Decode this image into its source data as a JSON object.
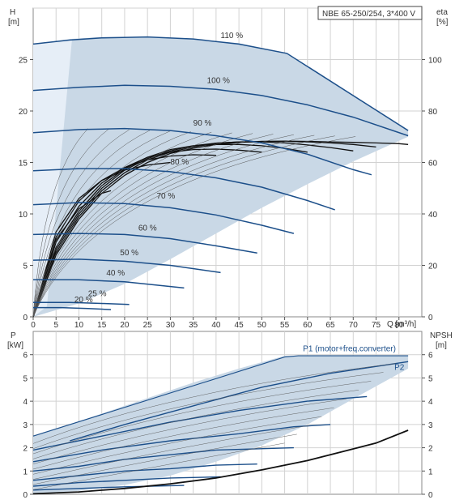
{
  "chart_data": [
    {
      "type": "line",
      "title": "NBE 65-250/254, 3*400 V",
      "xlabel": "Q [m³/h]",
      "ylabel_left": "H\n[m]",
      "ylabel_right": "eta\n[%]",
      "xlim": [
        0,
        85
      ],
      "ylim_left": [
        0,
        30
      ],
      "ylim_right": [
        0,
        120
      ],
      "xticks": [
        0,
        5,
        10,
        15,
        20,
        25,
        30,
        35,
        40,
        45,
        50,
        55,
        60,
        65,
        70,
        75,
        80
      ],
      "yticks_left": [
        0,
        5,
        10,
        15,
        20,
        25
      ],
      "yticks_right": [
        0,
        20,
        40,
        60,
        80,
        100
      ],
      "grid": true,
      "colors": {
        "envelope": "#c9d8e6",
        "envelope_edge": "#1c4f8a",
        "curve": "#1c4f8a",
        "eta": "#111111",
        "grid": "#d2d2d2"
      },
      "envelope": [
        [
          0,
          0
        ],
        [
          0,
          26.5
        ],
        [
          8,
          27
        ],
        [
          15,
          27.2
        ],
        [
          25,
          27.2
        ],
        [
          35,
          27.0
        ],
        [
          45,
          26.6
        ],
        [
          55.5,
          25.6
        ],
        [
          82,
          18.2
        ],
        [
          82,
          17.5
        ],
        [
          70,
          15.1
        ],
        [
          60,
          12.9
        ],
        [
          50,
          10.6
        ],
        [
          40,
          8.1
        ],
        [
          30,
          5.6
        ],
        [
          20,
          3.2
        ],
        [
          10,
          1.3
        ],
        [
          0,
          0
        ]
      ],
      "series": [
        {
          "name": "110 %",
          "label_at": [
            41,
            27.1
          ],
          "x": [
            0,
            8,
            15,
            25,
            35,
            45,
            55.5,
            82
          ],
          "y": [
            26.5,
            26.9,
            27.1,
            27.2,
            27.0,
            26.5,
            25.6,
            18.1
          ]
        },
        {
          "name": "100 %",
          "label_at": [
            38,
            22.7
          ],
          "x": [
            0,
            10,
            20,
            30,
            40,
            50,
            60,
            70,
            82
          ],
          "y": [
            22.0,
            22.3,
            22.5,
            22.4,
            22.1,
            21.5,
            20.6,
            19.4,
            17.6
          ]
        },
        {
          "name": "90 %",
          "label_at": [
            35,
            18.6
          ],
          "x": [
            0,
            10,
            20,
            30,
            40,
            50,
            60,
            70,
            74
          ],
          "y": [
            17.9,
            18.2,
            18.3,
            18.1,
            17.6,
            16.9,
            15.8,
            14.3,
            13.8
          ]
        },
        {
          "name": "80 %",
          "label_at": [
            30,
            14.8
          ],
          "x": [
            0,
            10,
            20,
            30,
            40,
            50,
            60,
            66
          ],
          "y": [
            14.2,
            14.4,
            14.4,
            14.1,
            13.5,
            12.6,
            11.3,
            10.4
          ]
        },
        {
          "name": "70 %",
          "label_at": [
            27,
            11.5
          ],
          "x": [
            0,
            10,
            20,
            30,
            40,
            50,
            57
          ],
          "y": [
            10.9,
            11.1,
            11.0,
            10.6,
            9.9,
            8.9,
            8.1
          ]
        },
        {
          "name": "60 %",
          "label_at": [
            23,
            8.4
          ],
          "x": [
            0,
            10,
            20,
            30,
            40,
            49
          ],
          "y": [
            8.0,
            8.1,
            8.0,
            7.6,
            6.9,
            6.2
          ]
        },
        {
          "name": "50 %",
          "label_at": [
            19,
            6.0
          ],
          "x": [
            0,
            10,
            20,
            30,
            41
          ],
          "y": [
            5.5,
            5.6,
            5.4,
            5.0,
            4.3
          ]
        },
        {
          "name": "40 %",
          "label_at": [
            16,
            4.0
          ],
          "x": [
            0,
            10,
            20,
            33
          ],
          "y": [
            3.6,
            3.6,
            3.4,
            2.8
          ]
        },
        {
          "name": "25 %",
          "label_at": [
            12,
            2.0
          ],
          "x": [
            0,
            8,
            15,
            21
          ],
          "y": [
            1.4,
            1.4,
            1.3,
            1.2
          ]
        },
        {
          "name": "20 %",
          "label_at": [
            9,
            1.4
          ],
          "x": [
            0,
            6,
            12,
            17
          ],
          "y": [
            0.9,
            0.9,
            0.8,
            0.7
          ]
        }
      ],
      "eta": [
        {
          "x": [
            0,
            5,
            10,
            15,
            20,
            25,
            30,
            35,
            40,
            45,
            50,
            55,
            60,
            65,
            70,
            75,
            80,
            82
          ],
          "y": [
            0,
            24,
            38,
            48,
            55,
            60,
            63.5,
            65.5,
            67,
            67.8,
            68.2,
            68.3,
            68.2,
            68,
            67.8,
            67.6,
            67.3,
            67
          ]
        },
        {
          "x": [
            0,
            5,
            10,
            15,
            20,
            25,
            30,
            35,
            40,
            45,
            50,
            55,
            60,
            65,
            70,
            75
          ],
          "y": [
            0,
            25,
            39,
            49,
            56,
            61,
            64,
            66,
            67.5,
            68,
            68.2,
            68.2,
            68,
            67.6,
            67,
            66
          ]
        },
        {
          "x": [
            0,
            5,
            10,
            15,
            20,
            25,
            30,
            35,
            40,
            45,
            50,
            55,
            60,
            65,
            70
          ],
          "y": [
            0,
            26,
            40,
            50,
            57,
            61.5,
            64.5,
            66.5,
            67.5,
            68,
            68,
            67.6,
            66.8,
            65.8,
            64.5
          ]
        },
        {
          "x": [
            0,
            5,
            10,
            15,
            20,
            25,
            30,
            35,
            40,
            45,
            50,
            55,
            60
          ],
          "y": [
            0,
            27,
            41,
            51,
            57.5,
            62,
            65,
            66.5,
            67,
            67,
            66.5,
            65.5,
            64
          ]
        },
        {
          "x": [
            0,
            5,
            10,
            15,
            20,
            25,
            30,
            35,
            40,
            45,
            50
          ],
          "y": [
            0,
            29,
            43,
            52,
            58,
            62,
            64,
            65,
            65.2,
            64.8,
            64
          ]
        },
        {
          "x": [
            0,
            5,
            10,
            15,
            20,
            25,
            30,
            35,
            40
          ],
          "y": [
            0,
            31,
            45,
            53,
            58,
            61,
            62.5,
            63,
            62.8
          ]
        },
        {
          "x": [
            0,
            5,
            10,
            15,
            20,
            25,
            30
          ],
          "y": [
            0,
            33,
            46,
            53,
            57,
            59,
            60
          ]
        },
        {
          "x": [
            0,
            5,
            10,
            15,
            17
          ],
          "y": [
            0,
            30,
            42,
            48,
            49
          ]
        }
      ],
      "labels": {
        "x": "Q [m³/h]"
      }
    },
    {
      "type": "line",
      "xlabel": "",
      "ylabel_left": "P\n[kW]",
      "ylabel_right": "NPSH\n[m]",
      "ylim_left": [
        0,
        7
      ],
      "ylim_right": [
        0,
        7
      ],
      "yticks_left": [
        0,
        1,
        2,
        3,
        4,
        5,
        6
      ],
      "yticks_right": [
        0,
        1,
        2,
        3,
        4,
        5,
        6
      ],
      "envelope": [
        [
          0,
          0
        ],
        [
          0,
          2.5
        ],
        [
          8,
          3.0
        ],
        [
          20,
          3.8
        ],
        [
          35,
          4.8
        ],
        [
          45,
          5.4
        ],
        [
          55,
          5.95
        ],
        [
          82,
          5.95
        ],
        [
          82,
          5.4
        ],
        [
          70,
          4.1
        ],
        [
          60,
          3.0
        ],
        [
          50,
          2.1
        ],
        [
          40,
          1.4
        ],
        [
          30,
          0.8
        ],
        [
          20,
          0.4
        ],
        [
          10,
          0.15
        ],
        [
          0,
          0
        ]
      ],
      "series": [
        {
          "name": "P1 (motor+freq.converter)",
          "label_at": [
            59,
            6.15
          ],
          "x": [
            0,
            55,
            58,
            82
          ],
          "y": [
            2.5,
            5.9,
            5.95,
            5.95
          ]
        },
        {
          "name": "P2",
          "label_at": [
            79,
            5.35
          ],
          "x": [
            8,
            20,
            35,
            50,
            65,
            82
          ],
          "y": [
            2.3,
            3.0,
            3.8,
            4.6,
            5.2,
            5.7
          ]
        },
        {
          "name": "",
          "x": [
            0,
            15,
            30,
            45,
            60,
            73
          ],
          "y": [
            1.9,
            2.5,
            3.1,
            3.6,
            4.0,
            4.2
          ]
        },
        {
          "name": "",
          "x": [
            0,
            15,
            30,
            45,
            57,
            65
          ],
          "y": [
            1.4,
            1.9,
            2.3,
            2.6,
            2.9,
            3.0
          ]
        },
        {
          "name": "",
          "x": [
            0,
            10,
            20,
            30,
            40,
            57
          ],
          "y": [
            1.0,
            1.2,
            1.5,
            1.7,
            1.9,
            2.0
          ]
        },
        {
          "name": "",
          "x": [
            0,
            10,
            20,
            30,
            40,
            49
          ],
          "y": [
            0.6,
            0.8,
            1.0,
            1.1,
            1.25,
            1.3
          ]
        },
        {
          "name": "",
          "x": [
            0,
            10,
            20,
            30,
            41
          ],
          "y": [
            0.35,
            0.5,
            0.6,
            0.7,
            0.75
          ]
        },
        {
          "name": "",
          "x": [
            0,
            10,
            20,
            33
          ],
          "y": [
            0.18,
            0.25,
            0.32,
            0.38
          ]
        }
      ],
      "npsh": {
        "x": [
          0,
          10,
          20,
          30,
          40,
          50,
          60,
          70,
          75,
          82
        ],
        "y": [
          0.02,
          0.1,
          0.25,
          0.45,
          0.7,
          1.05,
          1.45,
          1.95,
          2.2,
          2.75
        ]
      }
    }
  ]
}
